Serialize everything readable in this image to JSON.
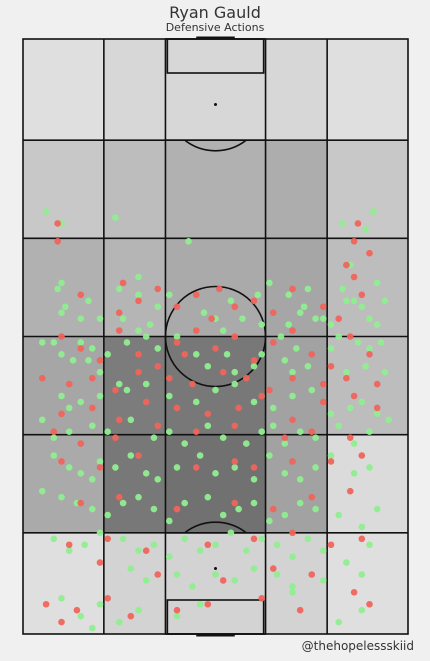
{
  "chart_data": {
    "type": "scatter",
    "title": "Ryan Gauld",
    "subtitle": "Defensive Actions",
    "credit": "@thehopelessskiid",
    "colors": {
      "success": "#90ee90",
      "fail": "#f0645a",
      "lines": "#111111"
    },
    "grid": {
      "cols": 5,
      "rows": 6
    },
    "zone_shade": [
      [
        0.08,
        0.12,
        0.12,
        0.12,
        0.08
      ],
      [
        0.2,
        0.26,
        0.32,
        0.34,
        0.2
      ],
      [
        0.32,
        0.3,
        0.36,
        0.38,
        0.26
      ],
      [
        0.38,
        0.6,
        0.62,
        0.4,
        0.26
      ],
      [
        0.36,
        0.62,
        0.66,
        0.4,
        0.1
      ],
      [
        0.08,
        0.14,
        0.14,
        0.14,
        0.08
      ]
    ],
    "series": [
      {
        "outcome": "success",
        "points": [
          [
            6,
            29
          ],
          [
            10,
            31
          ],
          [
            24,
            30
          ],
          [
            43,
            34
          ],
          [
            85,
            38
          ],
          [
            91,
            29
          ],
          [
            89,
            32
          ],
          [
            92,
            41
          ],
          [
            84,
            44
          ],
          [
            83,
            31
          ],
          [
            10,
            41
          ],
          [
            9,
            42
          ],
          [
            11,
            45
          ],
          [
            10,
            46
          ],
          [
            15,
            47
          ],
          [
            20,
            47
          ],
          [
            26,
            47
          ],
          [
            30,
            43
          ],
          [
            35,
            45
          ],
          [
            33,
            48
          ],
          [
            30,
            40
          ],
          [
            25,
            42
          ],
          [
            17,
            44
          ],
          [
            38,
            43
          ],
          [
            47,
            46
          ],
          [
            50,
            47
          ],
          [
            61,
            43
          ],
          [
            64,
            41
          ],
          [
            69,
            43
          ],
          [
            72,
            46
          ],
          [
            76,
            47
          ],
          [
            74,
            42
          ],
          [
            73,
            45
          ],
          [
            69,
            48
          ],
          [
            62,
            48
          ],
          [
            57,
            47
          ],
          [
            54,
            44
          ],
          [
            80,
            48
          ],
          [
            78,
            47
          ],
          [
            83,
            42
          ],
          [
            86,
            44
          ],
          [
            88,
            45
          ],
          [
            90,
            47
          ],
          [
            92,
            48
          ],
          [
            94,
            44
          ],
          [
            5,
            51
          ],
          [
            8,
            51
          ],
          [
            10,
            53
          ],
          [
            13,
            54
          ],
          [
            17,
            54
          ],
          [
            20,
            56
          ],
          [
            22,
            53
          ],
          [
            15,
            51
          ],
          [
            18,
            52
          ],
          [
            30,
            49
          ],
          [
            32,
            50
          ],
          [
            27,
            51
          ],
          [
            35,
            52
          ],
          [
            40,
            50
          ],
          [
            45,
            53
          ],
          [
            52,
            49
          ],
          [
            53,
            53
          ],
          [
            48,
            55
          ],
          [
            55,
            56
          ],
          [
            60,
            55
          ],
          [
            62,
            53
          ],
          [
            67,
            50
          ],
          [
            71,
            52
          ],
          [
            70,
            56
          ],
          [
            68,
            54
          ],
          [
            74,
            55
          ],
          [
            80,
            52
          ],
          [
            82,
            50
          ],
          [
            87,
            51
          ],
          [
            90,
            52
          ],
          [
            93,
            51
          ],
          [
            89,
            55
          ],
          [
            84,
            56
          ],
          [
            94,
            56
          ],
          [
            10,
            60
          ],
          [
            12,
            62
          ],
          [
            15,
            61
          ],
          [
            20,
            60
          ],
          [
            25,
            58
          ],
          [
            27,
            59
          ],
          [
            32,
            58
          ],
          [
            38,
            60
          ],
          [
            45,
            61
          ],
          [
            50,
            59
          ],
          [
            55,
            58
          ],
          [
            60,
            61
          ],
          [
            65,
            62
          ],
          [
            70,
            60
          ],
          [
            75,
            59
          ],
          [
            80,
            63
          ],
          [
            85,
            62
          ],
          [
            88,
            61
          ],
          [
            92,
            63
          ],
          [
            5,
            64
          ],
          [
            8,
            67
          ],
          [
            12,
            66
          ],
          [
            18,
            65
          ],
          [
            22,
            66
          ],
          [
            28,
            64
          ],
          [
            34,
            67
          ],
          [
            38,
            66
          ],
          [
            42,
            68
          ],
          [
            48,
            65
          ],
          [
            52,
            67
          ],
          [
            58,
            68
          ],
          [
            62,
            66
          ],
          [
            65,
            65
          ],
          [
            68,
            68
          ],
          [
            72,
            66
          ],
          [
            76,
            67
          ],
          [
            82,
            65
          ],
          [
            86,
            68
          ],
          [
            90,
            66
          ],
          [
            95,
            64
          ],
          [
            8,
            70
          ],
          [
            12,
            72
          ],
          [
            15,
            73
          ],
          [
            18,
            74
          ],
          [
            20,
            71
          ],
          [
            24,
            72
          ],
          [
            28,
            70
          ],
          [
            32,
            73
          ],
          [
            35,
            74
          ],
          [
            40,
            72
          ],
          [
            46,
            70
          ],
          [
            50,
            73
          ],
          [
            55,
            72
          ],
          [
            60,
            74
          ],
          [
            64,
            70
          ],
          [
            68,
            73
          ],
          [
            72,
            74
          ],
          [
            76,
            72
          ],
          [
            80,
            70
          ],
          [
            86,
            73
          ],
          [
            90,
            72
          ],
          [
            5,
            76
          ],
          [
            10,
            77
          ],
          [
            14,
            78
          ],
          [
            18,
            79
          ],
          [
            22,
            80
          ],
          [
            26,
            78
          ],
          [
            30,
            77
          ],
          [
            34,
            79
          ],
          [
            38,
            81
          ],
          [
            42,
            78
          ],
          [
            48,
            77
          ],
          [
            52,
            80
          ],
          [
            56,
            79
          ],
          [
            60,
            78
          ],
          [
            64,
            81
          ],
          [
            68,
            80
          ],
          [
            72,
            78
          ],
          [
            76,
            79
          ],
          [
            82,
            80
          ],
          [
            88,
            82
          ],
          [
            92,
            79
          ],
          [
            8,
            84
          ],
          [
            12,
            86
          ],
          [
            16,
            85
          ],
          [
            20,
            83
          ],
          [
            26,
            84
          ],
          [
            30,
            86
          ],
          [
            34,
            85
          ],
          [
            38,
            87
          ],
          [
            42,
            84
          ],
          [
            46,
            86
          ],
          [
            50,
            85
          ],
          [
            54,
            83
          ],
          [
            58,
            86
          ],
          [
            62,
            84
          ],
          [
            66,
            85
          ],
          [
            70,
            87
          ],
          [
            74,
            84
          ],
          [
            78,
            86
          ],
          [
            84,
            88
          ],
          [
            90,
            85
          ],
          [
            28,
            89
          ],
          [
            32,
            91
          ],
          [
            40,
            90
          ],
          [
            44,
            92
          ],
          [
            50,
            90
          ],
          [
            55,
            91
          ],
          [
            60,
            89
          ],
          [
            66,
            90
          ],
          [
            70,
            92
          ],
          [
            78,
            91
          ],
          [
            88,
            90
          ],
          [
            10,
            94
          ],
          [
            15,
            97
          ],
          [
            18,
            99
          ],
          [
            20,
            95
          ],
          [
            25,
            98
          ],
          [
            30,
            96
          ],
          [
            40,
            97
          ],
          [
            46,
            95
          ],
          [
            70,
            93
          ],
          [
            82,
            98
          ],
          [
            88,
            96
          ]
        ]
      },
      {
        "outcome": "fail",
        "points": [
          [
            9,
            31
          ],
          [
            9,
            34
          ],
          [
            26,
            41
          ],
          [
            49,
            47
          ],
          [
            51,
            42
          ],
          [
            86,
            34
          ],
          [
            84,
            38
          ],
          [
            90,
            36
          ],
          [
            87,
            31
          ],
          [
            86,
            40
          ],
          [
            15,
            43
          ],
          [
            25,
            46
          ],
          [
            30,
            44
          ],
          [
            35,
            42
          ],
          [
            40,
            45
          ],
          [
            45,
            43
          ],
          [
            55,
            45
          ],
          [
            60,
            44
          ],
          [
            65,
            46
          ],
          [
            70,
            42
          ],
          [
            78,
            45
          ],
          [
            82,
            47
          ],
          [
            88,
            43
          ],
          [
            10,
            50
          ],
          [
            15,
            52
          ],
          [
            20,
            54
          ],
          [
            25,
            49
          ],
          [
            30,
            53
          ],
          [
            35,
            55
          ],
          [
            40,
            51
          ],
          [
            42,
            53
          ],
          [
            45,
            49
          ],
          [
            50,
            52
          ],
          [
            55,
            50
          ],
          [
            60,
            54
          ],
          [
            65,
            51
          ],
          [
            70,
            49
          ],
          [
            75,
            53
          ],
          [
            80,
            55
          ],
          [
            85,
            50
          ],
          [
            90,
            53
          ],
          [
            5,
            57
          ],
          [
            12,
            58
          ],
          [
            18,
            57
          ],
          [
            24,
            59
          ],
          [
            30,
            56
          ],
          [
            38,
            57
          ],
          [
            44,
            58
          ],
          [
            52,
            56
          ],
          [
            58,
            57
          ],
          [
            64,
            59
          ],
          [
            70,
            57
          ],
          [
            78,
            58
          ],
          [
            84,
            57
          ],
          [
            92,
            58
          ],
          [
            10,
            63
          ],
          [
            18,
            62
          ],
          [
            25,
            64
          ],
          [
            32,
            61
          ],
          [
            40,
            62
          ],
          [
            48,
            63
          ],
          [
            56,
            62
          ],
          [
            62,
            60
          ],
          [
            70,
            64
          ],
          [
            78,
            61
          ],
          [
            86,
            60
          ],
          [
            92,
            62
          ],
          [
            8,
            66
          ],
          [
            15,
            68
          ],
          [
            24,
            67
          ],
          [
            35,
            65
          ],
          [
            45,
            66
          ],
          [
            55,
            65
          ],
          [
            68,
            67
          ],
          [
            75,
            66
          ],
          [
            85,
            67
          ],
          [
            10,
            71
          ],
          [
            20,
            72
          ],
          [
            30,
            70
          ],
          [
            45,
            72
          ],
          [
            55,
            71
          ],
          [
            60,
            72
          ],
          [
            70,
            71
          ],
          [
            80,
            71
          ],
          [
            88,
            70
          ],
          [
            15,
            78
          ],
          [
            25,
            77
          ],
          [
            40,
            79
          ],
          [
            55,
            78
          ],
          [
            65,
            79
          ],
          [
            75,
            77
          ],
          [
            85,
            76
          ],
          [
            12,
            85
          ],
          [
            22,
            84
          ],
          [
            32,
            86
          ],
          [
            48,
            85
          ],
          [
            60,
            84
          ],
          [
            70,
            83
          ],
          [
            80,
            85
          ],
          [
            88,
            84
          ],
          [
            20,
            88
          ],
          [
            35,
            90
          ],
          [
            52,
            91
          ],
          [
            65,
            89
          ],
          [
            75,
            90
          ],
          [
            6,
            95
          ],
          [
            10,
            98
          ],
          [
            14,
            96
          ],
          [
            22,
            94
          ],
          [
            28,
            97
          ],
          [
            40,
            96
          ],
          [
            48,
            95
          ],
          [
            62,
            94
          ],
          [
            72,
            96
          ],
          [
            86,
            93
          ],
          [
            90,
            95
          ]
        ]
      }
    ]
  }
}
